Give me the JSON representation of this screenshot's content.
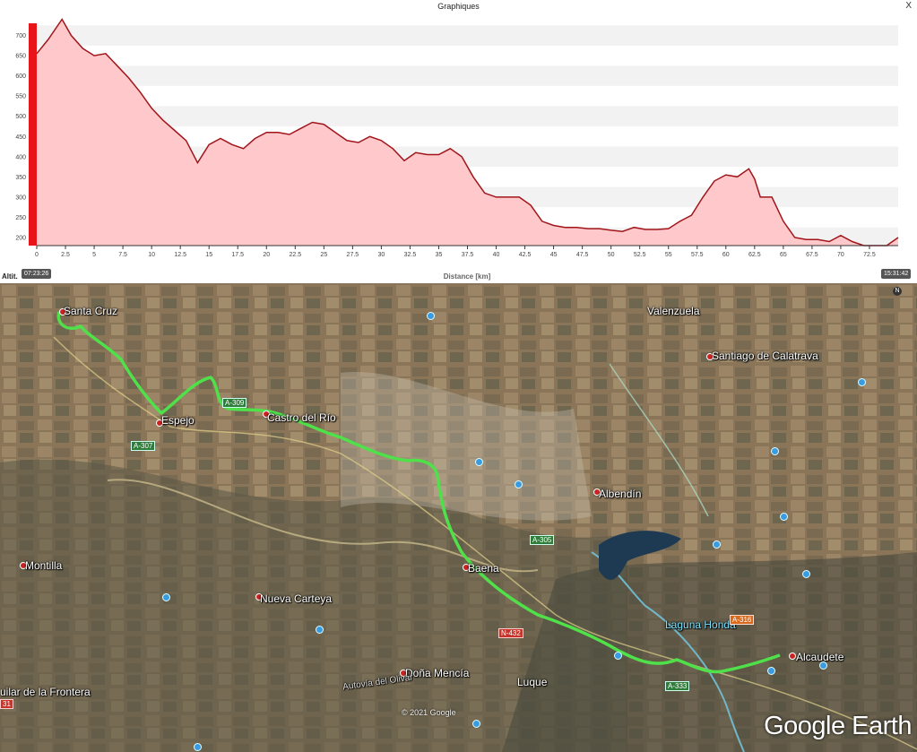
{
  "window": {
    "title": "Graphiques",
    "close_label": "X"
  },
  "chart_data": {
    "type": "area",
    "ylabel": "Altit.",
    "xlabel": "Distance [km]",
    "ylim": [
      180,
      730
    ],
    "xlim": [
      0,
      75
    ],
    "y_ticks": [
      200,
      250,
      300,
      350,
      400,
      450,
      500,
      550,
      600,
      650,
      700
    ],
    "x_ticks": [
      "0",
      "2.5",
      "5",
      "7.5",
      "10",
      "12.5",
      "15",
      "17.5",
      "20",
      "22.5",
      "25",
      "27.5",
      "30",
      "32.5",
      "35",
      "37.5",
      "40",
      "42.5",
      "45",
      "47.5",
      "50",
      "52.5",
      "55",
      "57.5",
      "60",
      "62.5",
      "65",
      "67.5",
      "70",
      "72.5"
    ],
    "x": [
      0,
      1,
      2.2,
      3,
      4,
      5,
      6,
      7,
      8,
      9,
      10,
      11,
      12,
      13,
      14,
      15,
      16,
      17,
      18,
      19,
      20,
      21,
      22,
      23,
      24,
      25,
      26,
      27,
      28,
      29,
      30,
      31,
      32,
      33,
      34,
      35,
      36,
      37,
      38,
      39,
      40,
      41,
      42,
      43,
      44,
      45,
      46,
      47,
      48,
      49,
      50,
      51,
      52,
      53,
      54,
      55,
      56,
      57,
      58,
      59,
      60,
      61,
      62,
      62.5,
      63,
      64,
      65,
      66,
      67,
      68,
      69,
      70,
      71,
      72,
      73,
      74,
      75
    ],
    "y": [
      655,
      690,
      740,
      700,
      668,
      650,
      655,
      625,
      595,
      560,
      520,
      490,
      465,
      440,
      385,
      430,
      445,
      430,
      420,
      445,
      460,
      460,
      455,
      470,
      485,
      480,
      460,
      440,
      435,
      450,
      440,
      420,
      390,
      410,
      405,
      405,
      420,
      400,
      350,
      310,
      300,
      300,
      300,
      280,
      240,
      230,
      225,
      225,
      222,
      222,
      218,
      215,
      225,
      220,
      220,
      222,
      240,
      255,
      300,
      340,
      355,
      350,
      370,
      345,
      300,
      300,
      240,
      200,
      195,
      195,
      190,
      205,
      190,
      180,
      180,
      180,
      200
    ],
    "start_time": "07:23:26",
    "end_time": "15:31:42",
    "line_color": "#a0151a",
    "fill_color": "#ffc9cc"
  },
  "map": {
    "places": [
      {
        "name": "Santa Cruz"
      },
      {
        "name": "Valenzuela"
      },
      {
        "name": "Santiago de Calatrava"
      },
      {
        "name": "Espejo"
      },
      {
        "name": "Castro del Río"
      },
      {
        "name": "Albendín"
      },
      {
        "name": "Montilla"
      },
      {
        "name": "Baena"
      },
      {
        "name": "Nueva Carteya"
      },
      {
        "name": "Laguna Honda"
      },
      {
        "name": "Alcaudete"
      },
      {
        "name": "Doña Mencía"
      },
      {
        "name": "Luque"
      },
      {
        "name": "uilar de la Frontera"
      },
      {
        "name": "Autovía del Olivar"
      }
    ],
    "roads": [
      "A-309",
      "A-307",
      "A-305",
      "N-432",
      "A-316",
      "A-333",
      "31"
    ],
    "copyright": "© 2021 Google",
    "logo": "Google Earth",
    "compass": "N",
    "track_color": "#4fe04a"
  }
}
